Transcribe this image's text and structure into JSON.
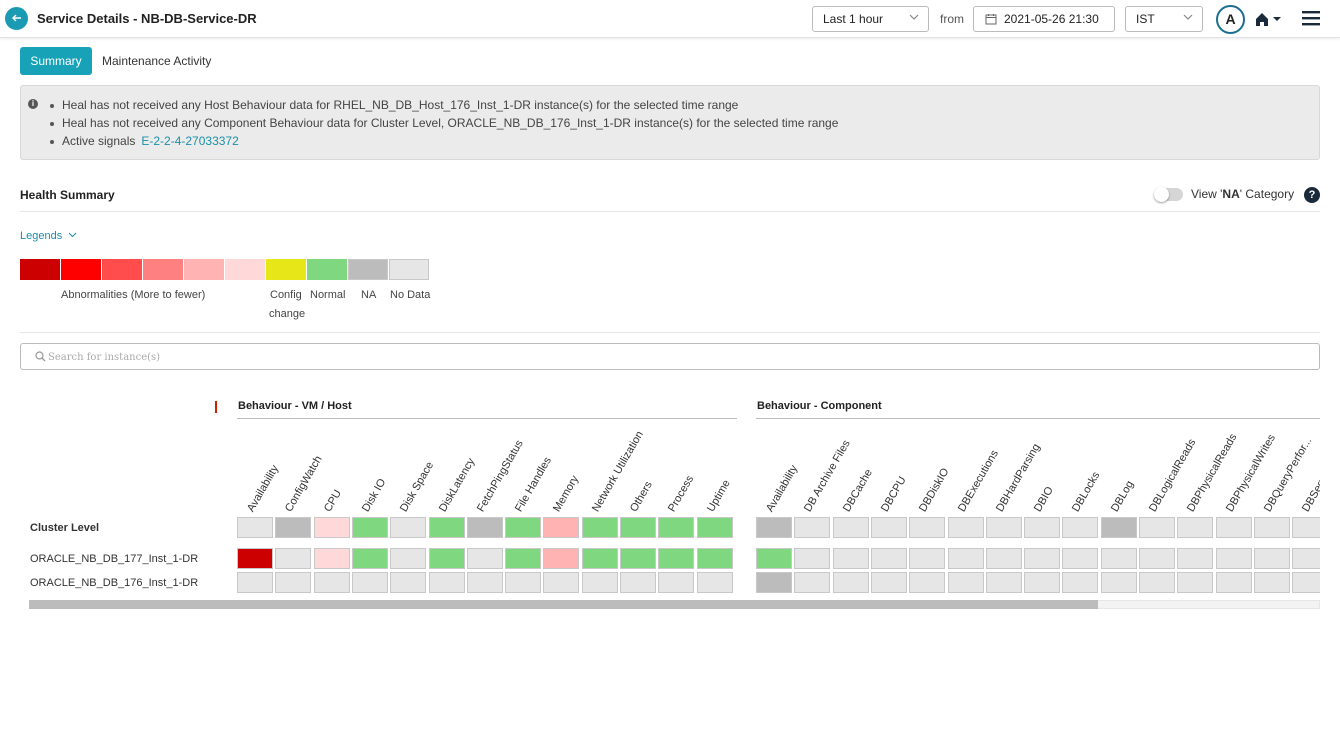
{
  "header": {
    "title": "Service Details - NB-DB-Service-DR",
    "time_range": "Last 1 hour",
    "from_label": "from",
    "from_datetime": "2021-05-26 21:30",
    "timezone": "IST",
    "avatar_initial": "A"
  },
  "tabs": {
    "summary": "Summary",
    "maintenance": "Maintenance Activity"
  },
  "info": {
    "line1": "Heal has not received any Host Behaviour data for RHEL_NB_DB_Host_176_Inst_1-DR instance(s) for the selected time range",
    "line2": "Heal has not received any Component Behaviour data for Cluster Level, ORACLE_NB_DB_176_Inst_1-DR instance(s) for the selected time range",
    "signals_label": "Active signals",
    "signals_link": "E-2-2-4-27033372"
  },
  "health": {
    "title": "Health Summary",
    "view_na_prefix": "View '",
    "view_na_bold": "NA",
    "view_na_suffix": "' Category",
    "legends_label": "Legends",
    "legend_colors": [
      "#cc0000",
      "#ff0000",
      "#ff4d4d",
      "#ff8080",
      "#ffb3b3",
      "#ffd9d9",
      "#e6e619",
      "#7fd77f",
      "#bcbcbc",
      "#e6e6e6"
    ],
    "legend_labels": {
      "abnormal": "Abnormalities (More to fewer)",
      "config_line1": "Config",
      "config_line2": "change",
      "normal": "Normal",
      "na": "NA",
      "nodata": "No Data"
    }
  },
  "search": {
    "placeholder": "Search for instance(s)"
  },
  "grid": {
    "groups": [
      "Behaviour - VM / Host",
      "Behaviour - Component"
    ],
    "vm_columns": [
      "Availability",
      "ConfigWatch",
      "CPU",
      "Disk IO",
      "Disk Space",
      "DiskLatency",
      "FetchPingStatus",
      "File Handles",
      "Memory",
      "Network Utilization",
      "Others",
      "Process",
      "Uptime"
    ],
    "comp_columns": [
      "Availability",
      "DB Archive Files",
      "DBCache",
      "DBCPU",
      "DBDiskIO",
      "DBExecutions",
      "DBHardParsing",
      "DBIO",
      "DBLocks",
      "DBLog",
      "DBLogicalReads",
      "DBPhysicalReads",
      "DBPhysicalWrites",
      "DBQueryPerfor...",
      "DBSequ..."
    ],
    "rows": [
      {
        "label": "Cluster Level",
        "vm": [
          "nodata",
          "na",
          "l6",
          "normal",
          "nodata",
          "normal",
          "na",
          "normal",
          "l5",
          "normal",
          "normal",
          "normal",
          "normal"
        ],
        "comp": [
          "na",
          "nodata",
          "nodata",
          "nodata",
          "nodata",
          "nodata",
          "nodata",
          "nodata",
          "nodata",
          "na",
          "nodata",
          "nodata",
          "nodata",
          "nodata",
          "nodata"
        ]
      },
      {
        "label": "ORACLE_NB_DB_177_Inst_1-DR",
        "vm": [
          "l1",
          "nodata",
          "l6",
          "normal",
          "nodata",
          "normal",
          "nodata",
          "normal",
          "l5",
          "normal",
          "normal",
          "normal",
          "normal"
        ],
        "comp": [
          "normal",
          "nodata",
          "nodata",
          "nodata",
          "nodata",
          "nodata",
          "nodata",
          "nodata",
          "nodata",
          "nodata",
          "nodata",
          "nodata",
          "nodata",
          "nodata",
          "nodata"
        ]
      },
      {
        "label": "ORACLE_NB_DB_176_Inst_1-DR",
        "vm": [
          "nodata",
          "nodata",
          "nodata",
          "nodata",
          "nodata",
          "nodata",
          "nodata",
          "nodata",
          "nodata",
          "nodata",
          "nodata",
          "nodata",
          "nodata"
        ],
        "comp": [
          "na",
          "nodata",
          "nodata",
          "nodata",
          "nodata",
          "nodata",
          "nodata",
          "nodata",
          "nodata",
          "nodata",
          "nodata",
          "nodata",
          "nodata",
          "nodata",
          "nodata"
        ]
      }
    ],
    "status_colors": {
      "l1": "#cc0000",
      "l5": "#ffb3b3",
      "l6": "#ffd9d9",
      "normal": "#7fd77f",
      "na": "#bcbcbc",
      "nodata": "#e6e6e6"
    }
  }
}
